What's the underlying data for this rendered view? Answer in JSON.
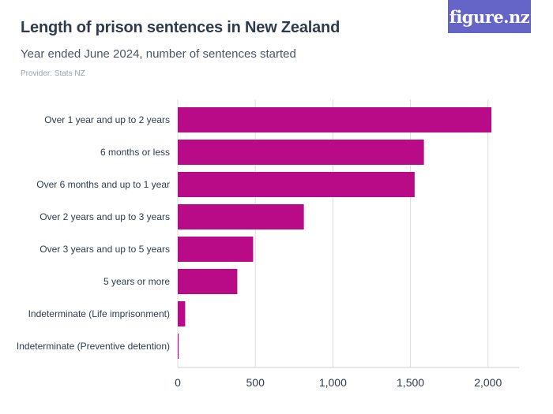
{
  "header": {
    "title": "Length of prison sentences in New Zealand",
    "subtitle": "Year ended June 2024, number of sentences started",
    "provider": "Provider: Stats NZ",
    "logo_text": "figure.nz"
  },
  "colors": {
    "bar": "#b90a87",
    "logo_bg": "#6565c8",
    "grid": "#dcdcdc",
    "title": "#2f3b4c"
  },
  "chart_data": {
    "type": "bar",
    "orientation": "horizontal",
    "title": "Length of prison sentences in New Zealand",
    "subtitle": "Year ended June 2024, number of sentences started",
    "xlabel": "",
    "ylabel": "",
    "categories": [
      "Over 1 year and up to 2 years",
      "6 months or less",
      "Over 6 months and up to 1 year",
      "Over 2 years and up to 3 years",
      "Over 3 years and up to 5 years",
      "5 years or more",
      "Indeterminate (Life imprisonment)",
      "Indeterminate (Preventive detention)"
    ],
    "values": [
      2022,
      1587,
      1527,
      813,
      486,
      384,
      48,
      6
    ],
    "xlim": [
      0,
      2200
    ],
    "xticks": [
      0,
      500,
      1000,
      1500,
      2000
    ],
    "xtick_labels": [
      "0",
      "500",
      "1,000",
      "1,500",
      "2,000"
    ],
    "grid": true
  }
}
